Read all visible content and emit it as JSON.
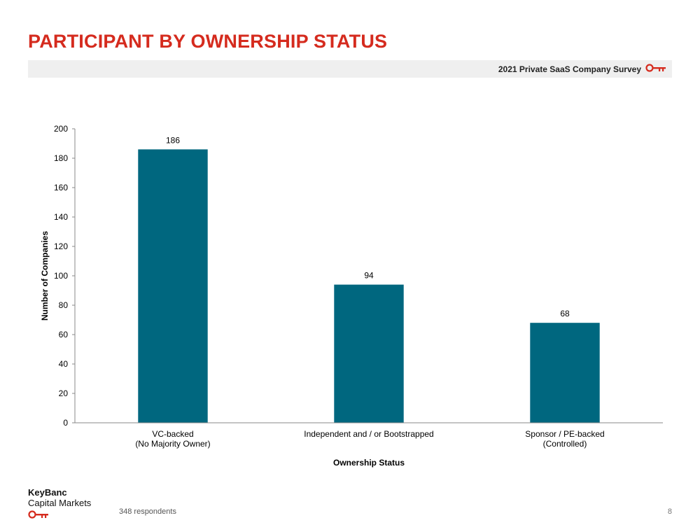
{
  "header": {
    "title": "PARTICIPANT BY OWNERSHIP STATUS",
    "banner": "2021 Private SaaS Company Survey"
  },
  "footer": {
    "logo_line1": "KeyBanc",
    "logo_line2": "Capital Markets",
    "note": "348 respondents",
    "page_number": "8"
  },
  "icons": {
    "key": "key-icon"
  },
  "colors": {
    "brand_red": "#d52b1e",
    "bar": "#00677f"
  },
  "chart_data": {
    "type": "bar",
    "categories": [
      [
        "VC-backed",
        "(No Majority Owner)"
      ],
      [
        "Independent and / or Bootstrapped"
      ],
      [
        "Sponsor / PE-backed",
        "(Controlled)"
      ]
    ],
    "values": [
      186,
      94,
      68
    ],
    "xlabel": "Ownership Status",
    "ylabel": "Number of Companies",
    "ylim": [
      0,
      200
    ],
    "yticks": [
      0,
      20,
      40,
      60,
      80,
      100,
      120,
      140,
      160,
      180,
      200
    ],
    "data_labels": true,
    "grid": false
  }
}
